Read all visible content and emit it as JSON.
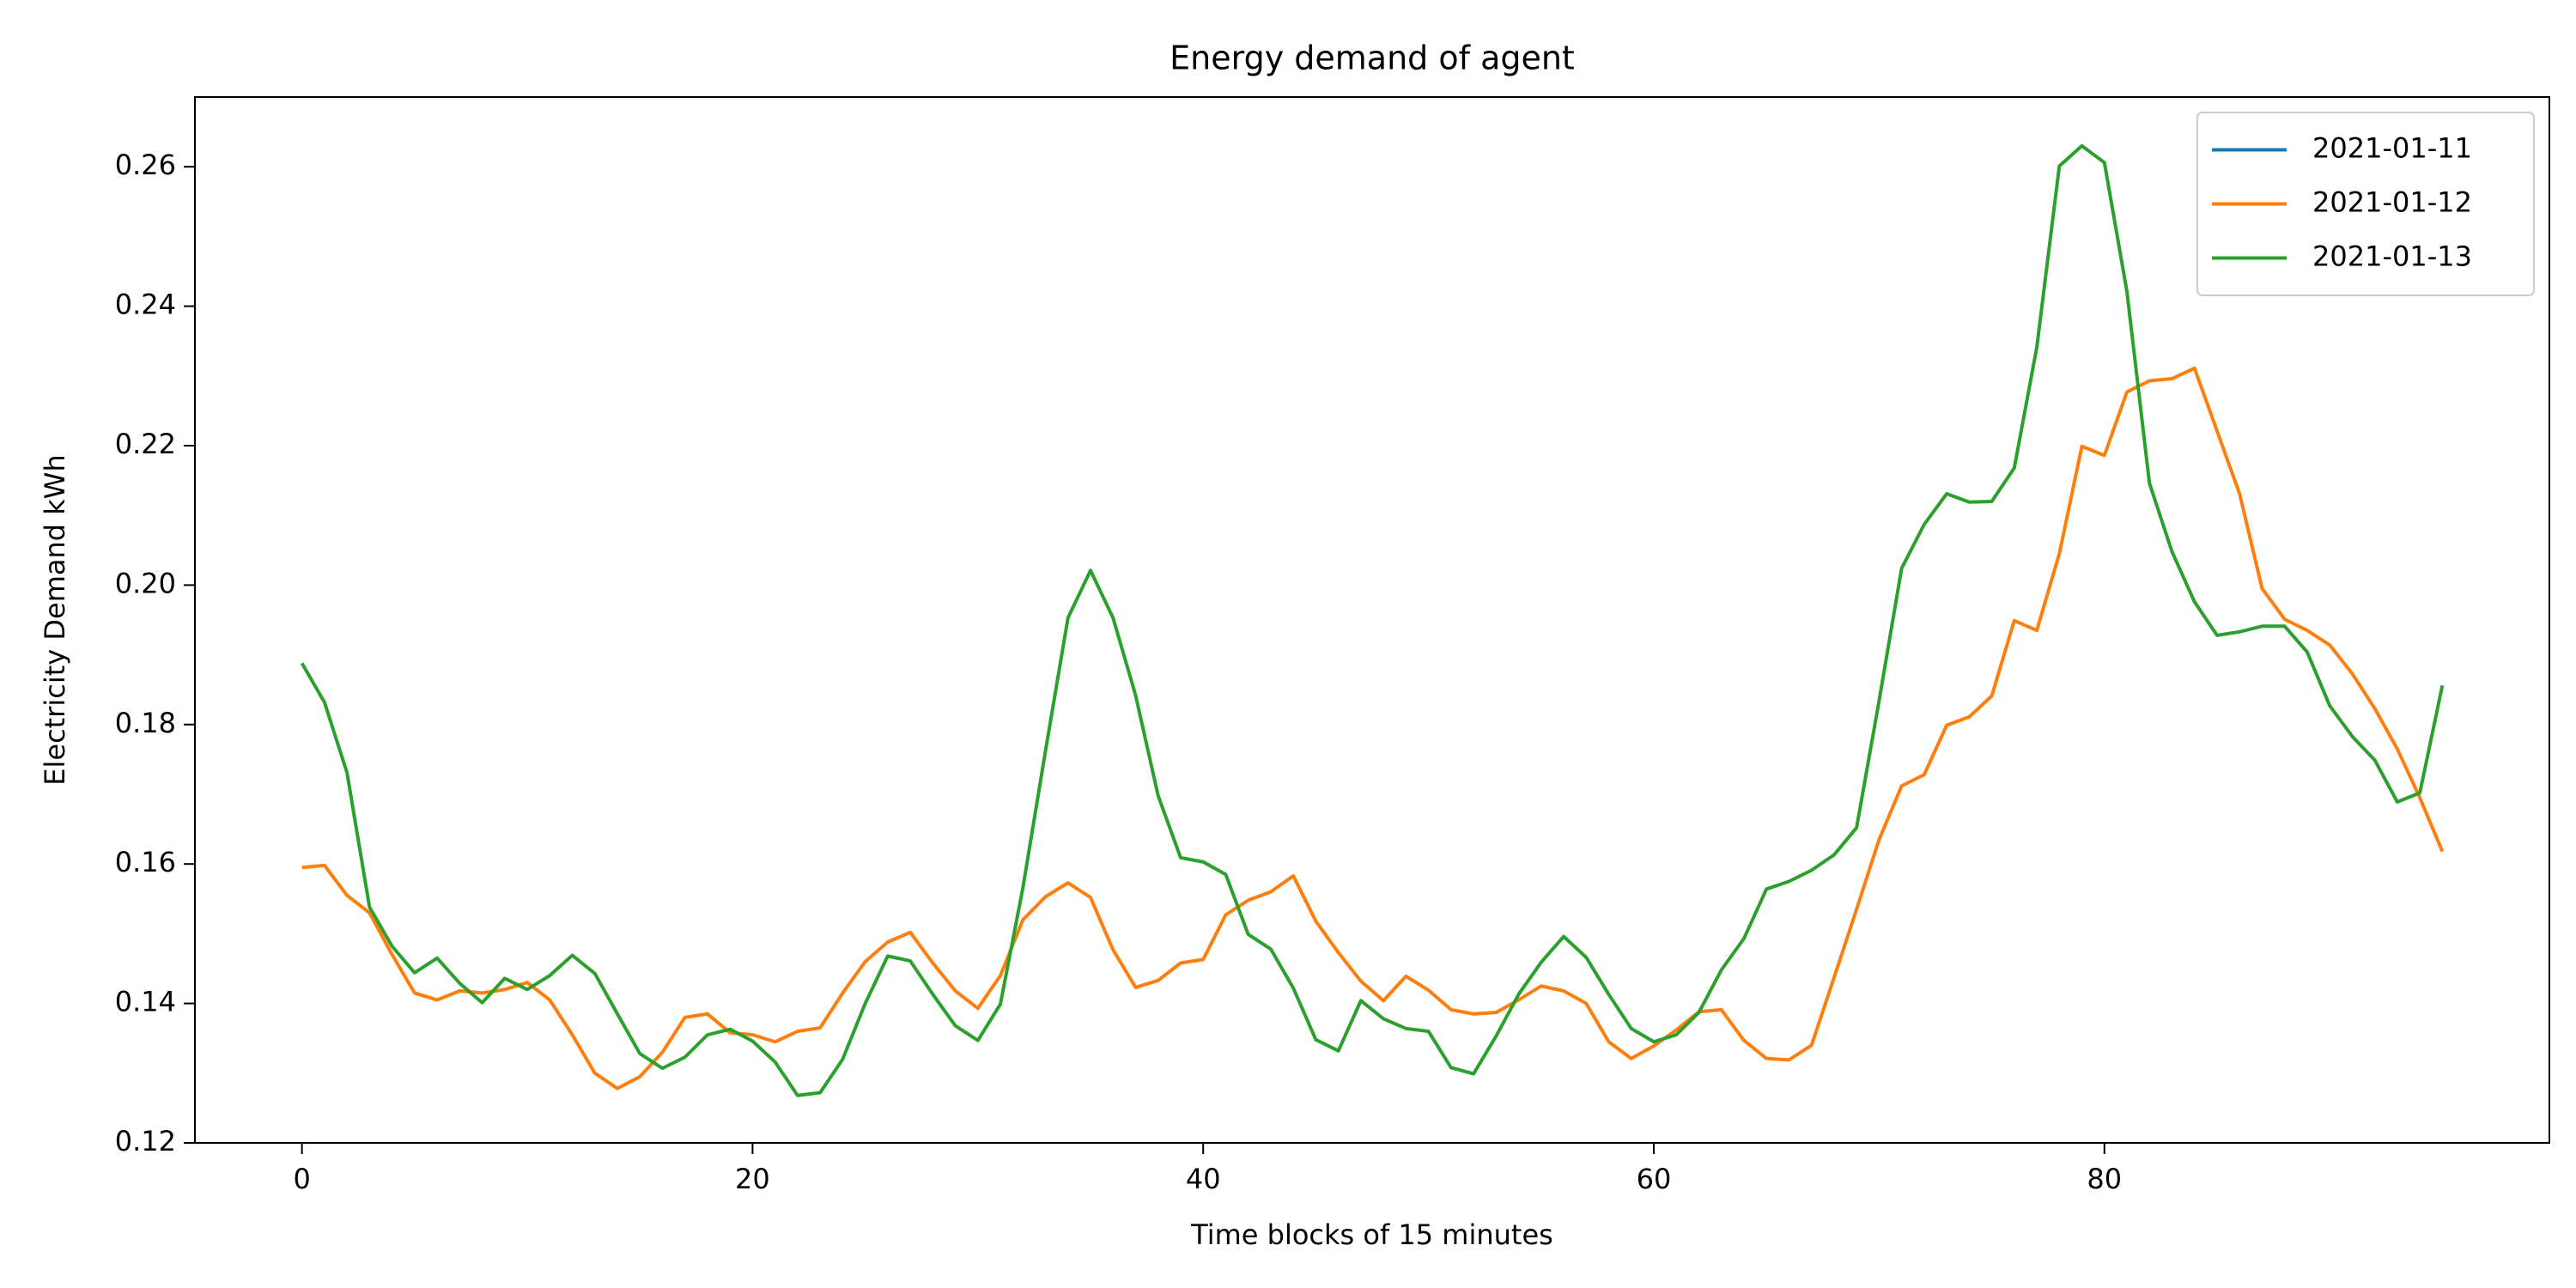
{
  "chart_data": {
    "type": "line",
    "title": "Energy demand of agent",
    "xlabel": "Time blocks of 15 minutes",
    "ylabel": "Electricity Demand kWh",
    "x": [
      0,
      1,
      2,
      3,
      4,
      5,
      6,
      7,
      8,
      9,
      10,
      11,
      12,
      13,
      14,
      15,
      16,
      17,
      18,
      19,
      20,
      21,
      22,
      23,
      24,
      25,
      26,
      27,
      28,
      29,
      30,
      31,
      32,
      33,
      34,
      35,
      36,
      37,
      38,
      39,
      40,
      41,
      42,
      43,
      44,
      45,
      46,
      47,
      48,
      49,
      50,
      51,
      52,
      53,
      54,
      55,
      56,
      57,
      58,
      59,
      60,
      61,
      62,
      63,
      64,
      65,
      66,
      67,
      68,
      69,
      70,
      71,
      72,
      73,
      74,
      75,
      76,
      77,
      78,
      79,
      80,
      81,
      82,
      83,
      84,
      85,
      86,
      87,
      88,
      89,
      90,
      91,
      92,
      93,
      94,
      95
    ],
    "series": [
      {
        "name": "2021-01-11",
        "color": "#1f77b4",
        "values": [
          null,
          null,
          null,
          null,
          null,
          null,
          null,
          null,
          null,
          null,
          null,
          null,
          null,
          null,
          null,
          null,
          null,
          null,
          null,
          null,
          null,
          null,
          null,
          null,
          null,
          null,
          null,
          null,
          null,
          null,
          null,
          null,
          null,
          null,
          null,
          null,
          null,
          null,
          null,
          null,
          null,
          null,
          null,
          null,
          null,
          null,
          null,
          null,
          null,
          null,
          null,
          null,
          null,
          null,
          null,
          null,
          null,
          null,
          null,
          null,
          null,
          null,
          null,
          null,
          null,
          null,
          null,
          null,
          null,
          null,
          null,
          null,
          null,
          null,
          null,
          null,
          null,
          null,
          null,
          null,
          null,
          null,
          null,
          null,
          null,
          null,
          null,
          null,
          null,
          null,
          null,
          null,
          null,
          null,
          null,
          null
        ]
      },
      {
        "name": "2021-01-12",
        "color": "#ff7f0e",
        "values": [
          0.1595,
          0.1598,
          0.1555,
          0.153,
          0.147,
          0.1415,
          0.1405,
          0.1418,
          0.1415,
          0.142,
          0.143,
          0.1405,
          0.1355,
          0.13,
          0.1278,
          0.1295,
          0.133,
          0.138,
          0.1385,
          0.1358,
          0.1355,
          0.1345,
          0.136,
          0.1365,
          0.1415,
          0.146,
          0.1488,
          0.1502,
          0.1458,
          0.1418,
          0.1393,
          0.144,
          0.152,
          0.1553,
          0.1573,
          0.1552,
          0.1477,
          0.1423,
          0.1433,
          0.1458,
          0.1463,
          0.1527,
          0.1548,
          0.156,
          0.1583,
          0.1518,
          0.1473,
          0.1432,
          0.1404,
          0.1439,
          0.1419,
          0.1391,
          0.1385,
          0.1387,
          0.1405,
          0.1425,
          0.1418,
          0.14,
          0.1345,
          0.1321,
          0.1339,
          0.1362,
          0.1388,
          0.1391,
          0.1347,
          0.1321,
          0.1319,
          0.134,
          0.1437,
          0.1535,
          0.1635,
          0.1712,
          0.1728,
          0.1799,
          0.1811,
          0.1841,
          0.1949,
          0.1935,
          0.2045,
          0.2199,
          0.2186,
          0.2277,
          0.2293,
          0.2296,
          0.2311,
          0.2221,
          0.2131,
          0.1995,
          0.1951,
          0.1935,
          0.1914,
          0.1873,
          0.1823,
          0.1765,
          0.1695,
          0.1618
        ]
      },
      {
        "name": "2021-01-13",
        "color": "#2ca02c",
        "values": [
          0.1888,
          0.1832,
          0.1731,
          0.1538,
          0.1482,
          0.1444,
          0.1465,
          0.1429,
          0.1401,
          0.1436,
          0.142,
          0.144,
          0.1469,
          0.1443,
          0.1385,
          0.1328,
          0.1307,
          0.1323,
          0.1355,
          0.1363,
          0.1346,
          0.1316,
          0.1268,
          0.1272,
          0.132,
          0.14,
          0.1468,
          0.1461,
          0.1413,
          0.1368,
          0.1347,
          0.1399,
          0.1566,
          0.1762,
          0.1953,
          0.2021,
          0.1953,
          0.1842,
          0.1698,
          0.1609,
          0.1603,
          0.1585,
          0.1499,
          0.1478,
          0.1422,
          0.1348,
          0.1332,
          0.1404,
          0.1378,
          0.1364,
          0.136,
          0.1308,
          0.1299,
          0.1353,
          0.1413,
          0.1459,
          0.1496,
          0.1466,
          0.1413,
          0.1364,
          0.1345,
          0.1355,
          0.1387,
          0.1448,
          0.1493,
          0.1564,
          0.1575,
          0.1591,
          0.1613,
          0.1652,
          0.1834,
          0.2024,
          0.2087,
          0.2131,
          0.2119,
          0.212,
          0.2168,
          0.2341,
          0.2601,
          0.263,
          0.2606,
          0.2421,
          0.2146,
          0.2048,
          0.1976,
          0.1928,
          0.1933,
          0.1941,
          0.1941,
          0.1904,
          0.1827,
          0.1783,
          0.1749,
          0.1689,
          0.1702,
          0.1856
        ]
      }
    ],
    "xlim": [
      -4.75,
      99.75
    ],
    "xticks": [
      0,
      20,
      40,
      60,
      80
    ],
    "ylim": [
      0.12,
      0.27
    ],
    "yticks": [
      0.12,
      0.14,
      0.16,
      0.18,
      {
        "value": 0.2,
        "label": "0.20"
      },
      0.22,
      0.24,
      0.26
    ],
    "grid": false,
    "legend": "upper right"
  }
}
